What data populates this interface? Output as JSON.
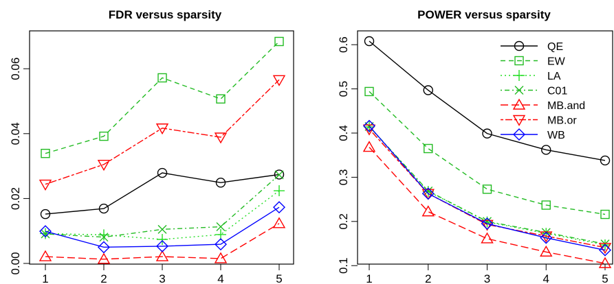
{
  "chart_data": [
    {
      "type": "line",
      "title": "FDR versus sparsity",
      "xlabel": "",
      "ylabel": "",
      "x": [
        1,
        2,
        3,
        4,
        5
      ],
      "xlim": [
        1,
        5
      ],
      "ylim": [
        0.0,
        0.0685
      ],
      "xticks": [
        "1",
        "2",
        "3",
        "4",
        "5"
      ],
      "yticks": [
        "0.00",
        "0.02",
        "0.04",
        "0.06"
      ],
      "ytick_values": [
        0.0,
        0.02,
        0.04,
        0.06
      ],
      "grid": false,
      "legend": null,
      "series": [
        {
          "name": "QE",
          "values": [
            0.0152,
            0.0169,
            0.0279,
            0.0249,
            0.0274
          ]
        },
        {
          "name": "EW",
          "values": [
            0.0339,
            0.0392,
            0.0572,
            0.0507,
            0.0684
          ]
        },
        {
          "name": "LA",
          "values": [
            0.0092,
            0.0088,
            0.0074,
            0.0089,
            0.0224
          ]
        },
        {
          "name": "C01",
          "values": [
            0.0091,
            0.0081,
            0.0105,
            0.0113,
            0.0273
          ]
        },
        {
          "name": "MB.and",
          "values": [
            0.0021,
            0.0013,
            0.0021,
            0.0015,
            0.0123
          ]
        },
        {
          "name": "MB.or",
          "values": [
            0.0244,
            0.0305,
            0.0417,
            0.0389,
            0.0566
          ]
        },
        {
          "name": "WB",
          "values": [
            0.0099,
            0.005,
            0.0053,
            0.0059,
            0.0173
          ]
        }
      ]
    },
    {
      "type": "line",
      "title": "POWER versus sparsity",
      "xlabel": "",
      "ylabel": "",
      "x": [
        1,
        2,
        3,
        4,
        5
      ],
      "xlim": [
        1,
        5
      ],
      "ylim": [
        0.105,
        0.608
      ],
      "xticks": [
        "1",
        "2",
        "3",
        "4",
        "5"
      ],
      "yticks": [
        "0.1",
        "0.2",
        "0.3",
        "0.4",
        "0.5",
        "0.6"
      ],
      "ytick_values": [
        0.1,
        0.2,
        0.3,
        0.4,
        0.5,
        0.6
      ],
      "grid": false,
      "legend": "top-right",
      "series": [
        {
          "name": "QE",
          "values": [
            0.608,
            0.497,
            0.399,
            0.362,
            0.338
          ]
        },
        {
          "name": "EW",
          "values": [
            0.494,
            0.365,
            0.273,
            0.237,
            0.216
          ]
        },
        {
          "name": "LA",
          "values": [
            0.414,
            0.268,
            0.199,
            0.173,
            0.147
          ]
        },
        {
          "name": "C01",
          "values": [
            0.415,
            0.269,
            0.2,
            0.175,
            0.149
          ]
        },
        {
          "name": "MB.and",
          "values": [
            0.368,
            0.222,
            0.161,
            0.131,
            0.105
          ]
        },
        {
          "name": "MB.or",
          "values": [
            0.409,
            0.263,
            0.193,
            0.167,
            0.141
          ]
        },
        {
          "name": "WB",
          "values": [
            0.416,
            0.263,
            0.195,
            0.163,
            0.135
          ]
        }
      ]
    }
  ],
  "styles": {
    "QE": {
      "color": "#000000",
      "marker": "circle",
      "dash": "solid"
    },
    "EW": {
      "color": "#22bb22",
      "marker": "square",
      "dash": "dashed"
    },
    "LA": {
      "color": "#22dd22",
      "marker": "plus",
      "dash": "dotted"
    },
    "C01": {
      "color": "#22bb22",
      "marker": "cross",
      "dash": "dotdash"
    },
    "MB.and": {
      "color": "#ff0000",
      "marker": "triangle-up",
      "dash": "longdash"
    },
    "MB.or": {
      "color": "#ff0000",
      "marker": "triangle-down",
      "dash": "twodash"
    },
    "WB": {
      "color": "#0000ff",
      "marker": "diamond",
      "dash": "solid"
    }
  }
}
